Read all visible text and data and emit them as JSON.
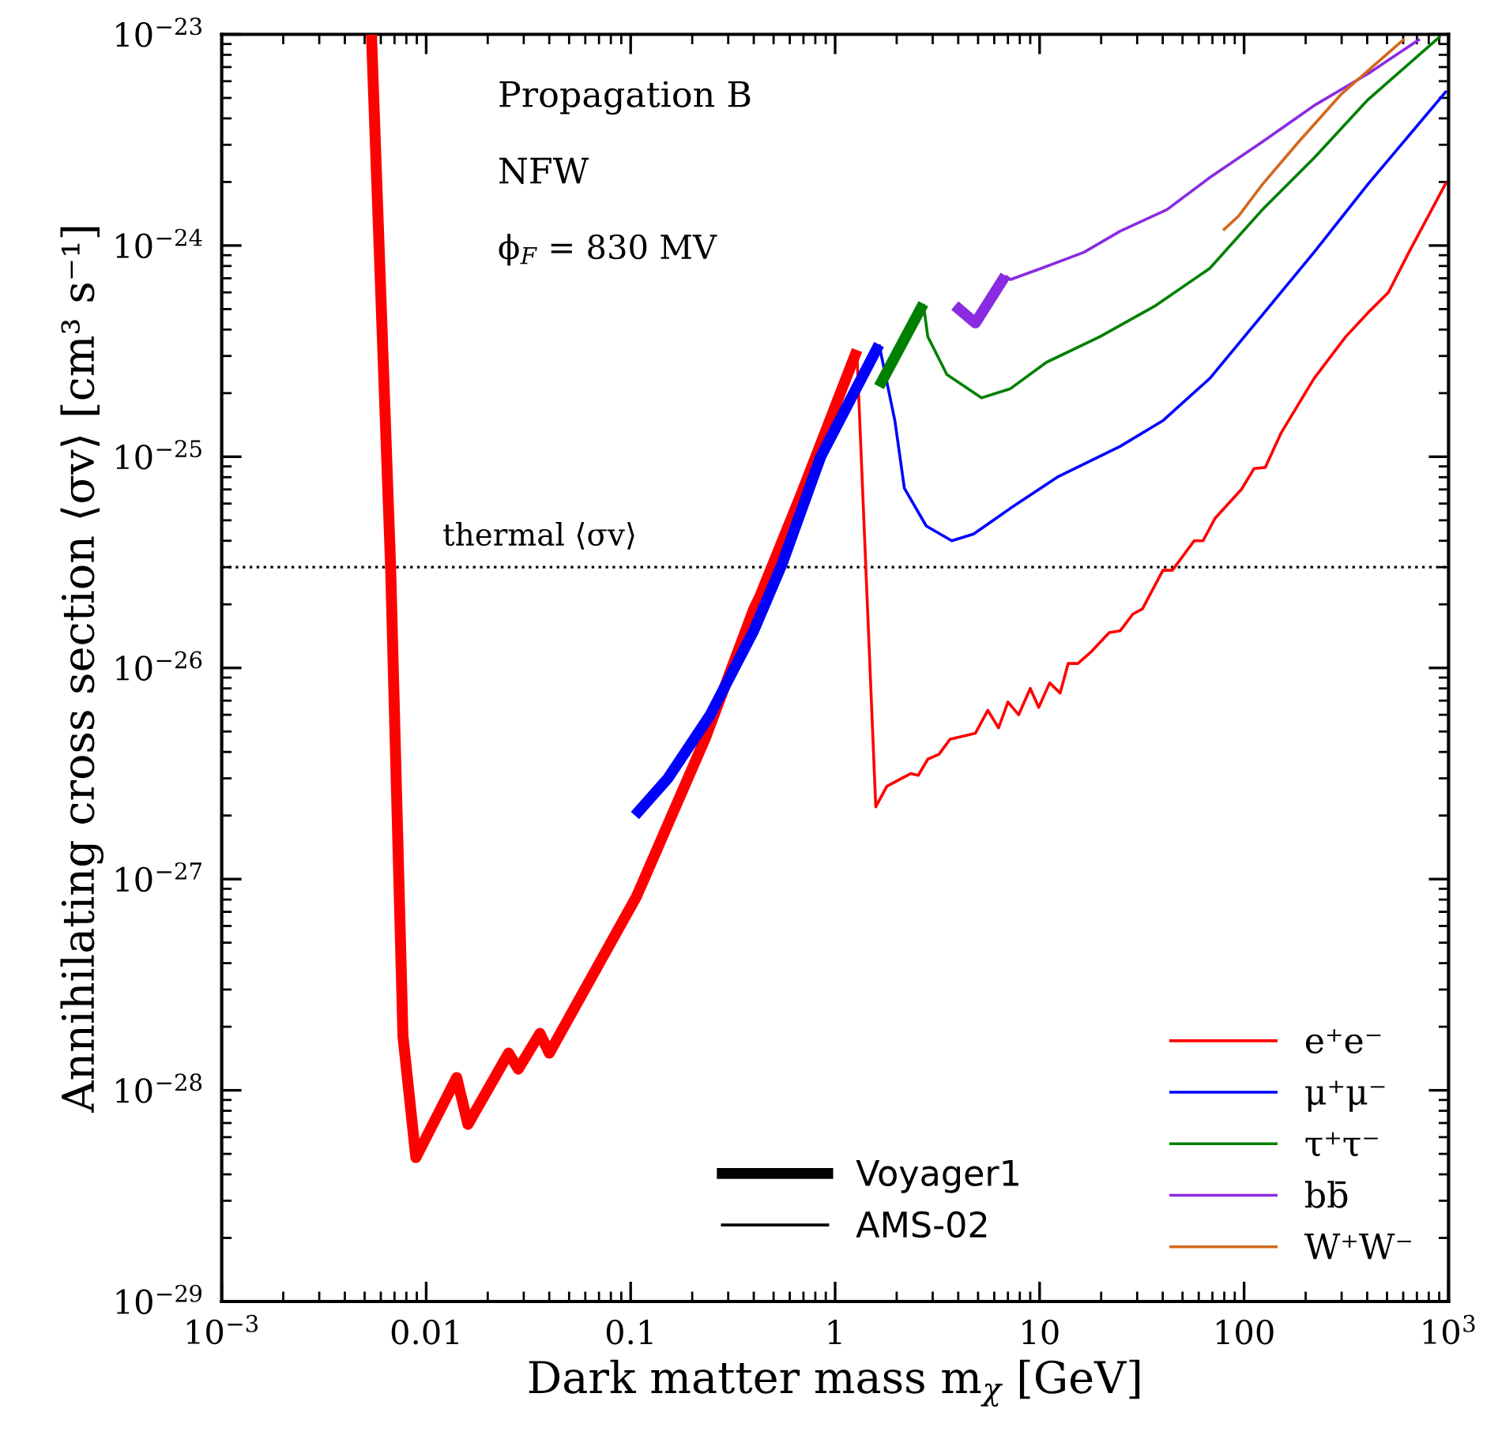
{
  "chart_data": {
    "type": "line",
    "xlabel": "Dark matter mass m$_{χ}$ [GeV]",
    "ylabel": "Annihilating cross section ⟨σv⟩ [cm³ s⁻¹]",
    "log": "xy",
    "grid": false,
    "legend": "bottom right",
    "xlim": [
      0.001,
      1000
    ],
    "ylim": [
      1e-29,
      1e-23
    ],
    "xticks": [
      {
        "value": 0.001,
        "label": "10$^{−3}$"
      },
      0.01,
      0.1,
      1,
      10,
      100,
      {
        "value": 1000,
        "label": "10$^{3}$"
      }
    ],
    "yticks": [
      {
        "value": 1e-29,
        "label": "10$^{−29}$"
      },
      {
        "value": 1e-28,
        "label": "10$^{−28}$"
      },
      {
        "value": 1e-27,
        "label": "10$^{−27}$"
      },
      {
        "value": 1e-26,
        "label": "10$^{−26}$"
      },
      {
        "value": 1e-25,
        "label": "10$^{−25}$"
      },
      {
        "value": 1e-24,
        "label": "10$^{−24}$"
      },
      {
        "value": 1e-23,
        "label": "10$^{−23}$"
      }
    ],
    "annotations": [
      "Propagation B",
      "NFW",
      "ϕ$_{F}$ = 830 MV",
      "Voyager1",
      "AMS-02"
    ],
    "ref_lines": [
      {
        "axis": "y",
        "value": 3e-26,
        "label": "thermal ⟨σv⟩",
        "color": "#000000",
        "line_style": "dotted"
      }
    ],
    "series": [
      {
        "color": "#ff0000",
        "x": [
          0.0054,
          0.0067,
          0.0077,
          0.0089,
          0.0141,
          0.016,
          0.0253,
          0.0282,
          0.036,
          0.04,
          0.107,
          0.233,
          0.4,
          0.43,
          0.68,
          1.28
        ],
        "values": [
          1e-23,
          3e-26,
          1.8e-28,
          4.8e-29,
          1.15e-28,
          6.9e-29,
          1.5e-28,
          1.26e-28,
          1.86e-28,
          1.5e-28,
          8.3e-28,
          4.7e-27,
          1.9e-26,
          2.2e-26,
          6.6e-26,
          3.2e-25
        ]
      },
      {
        "color": "#0000ff",
        "x": [
          0.105,
          0.152,
          0.245,
          0.4,
          0.55,
          0.85,
          1.64
        ],
        "values": [
          2e-27,
          3e-27,
          6e-27,
          1.5e-26,
          3.1e-26,
          1e-25,
          3.4e-25
        ]
      },
      {
        "color": "#008000",
        "x": [
          1.64,
          2.7
        ],
        "values": [
          2.15e-25,
          5.3e-25
        ]
      },
      {
        "color": "#8a2be2",
        "x": [
          3.85,
          4.85,
          6.8
        ],
        "values": [
          5.2e-25,
          4.3e-25,
          7.2e-25
        ]
      },
      {
        "name": "e⁺e⁻",
        "color": "#ff0000",
        "x": [
          1.28,
          1.58,
          1.79,
          2.34,
          2.55,
          2.84,
          3.22,
          3.65,
          4.85,
          5.58,
          6.3,
          7.0,
          7.9,
          9.0,
          9.9,
          11.2,
          12.6,
          13.8,
          15.4,
          18.0,
          21.9,
          24.8,
          28.6,
          31.8,
          40.1,
          44.6,
          57,
          63,
          72,
          97,
          112,
          127,
          152,
          220,
          314,
          403,
          508,
          640,
          977
        ],
        "values": [
          3e-25,
          2.2e-27,
          2.75e-27,
          3.16e-27,
          3.1e-27,
          3.7e-27,
          3.9e-27,
          4.6e-27,
          4.9e-27,
          6.3e-27,
          5.2e-27,
          6.9e-27,
          6e-27,
          8e-27,
          6.5e-27,
          8.5e-27,
          7.6e-27,
          1.05e-26,
          1.05e-26,
          1.2e-26,
          1.47e-26,
          1.5e-26,
          1.8e-26,
          1.9e-26,
          2.9e-26,
          2.9e-26,
          4e-26,
          4e-26,
          5.1e-26,
          7e-26,
          8.8e-26,
          8.9e-26,
          1.3e-25,
          2.35e-25,
          3.7e-25,
          4.8e-25,
          6e-25,
          9.3e-25,
          2e-24
        ]
      },
      {
        "name": "μ⁺μ⁻",
        "color": "#0000ff",
        "x": [
          1.64,
          1.96,
          2.18,
          2.79,
          3.72,
          4.75,
          7.2,
          12.2,
          24.8,
          40,
          68,
          123,
          220,
          403,
          977
        ],
        "values": [
          3.4e-25,
          1.48e-25,
          7.1e-26,
          4.7e-26,
          4e-26,
          4.3e-26,
          5.7e-26,
          8e-26,
          1.12e-25,
          1.48e-25,
          2.35e-25,
          4.7e-25,
          9.3e-25,
          1.95e-24,
          5.4e-24
        ]
      },
      {
        "name": "τ⁺τ⁻",
        "color": "#008000",
        "x": [
          2.7,
          2.84,
          3.52,
          5.2,
          7.2,
          10.8,
          19.7,
          37,
          68,
          123,
          220,
          403,
          912
        ],
        "values": [
          5.3e-25,
          3.7e-25,
          2.45e-25,
          1.9e-25,
          2.1e-25,
          2.8e-25,
          3.7e-25,
          5.2e-25,
          7.8e-25,
          1.48e-24,
          2.6e-24,
          4.9e-24,
          9.8e-24
        ]
      },
      {
        "name": "bb̄",
        "color": "#8a2be2",
        "x": [
          6.8,
          7.2,
          10.2,
          16.5,
          24.8,
          42,
          68,
          123,
          220,
          403,
          724
        ],
        "values": [
          7.2e-25,
          6.9e-25,
          7.8e-25,
          9.3e-25,
          1.17e-24,
          1.48e-24,
          2.1e-24,
          3.1e-24,
          4.6e-24,
          6.5e-24,
          9.5e-24
        ]
      },
      {
        "name": "W⁺W⁻",
        "color": "#d2691e",
        "x": [
          79,
          94,
          123,
          185,
          298,
          607
        ],
        "values": [
          1.18e-24,
          1.38e-24,
          1.95e-24,
          3.1e-24,
          5.2e-24,
          9.5e-24
        ]
      }
    ]
  }
}
